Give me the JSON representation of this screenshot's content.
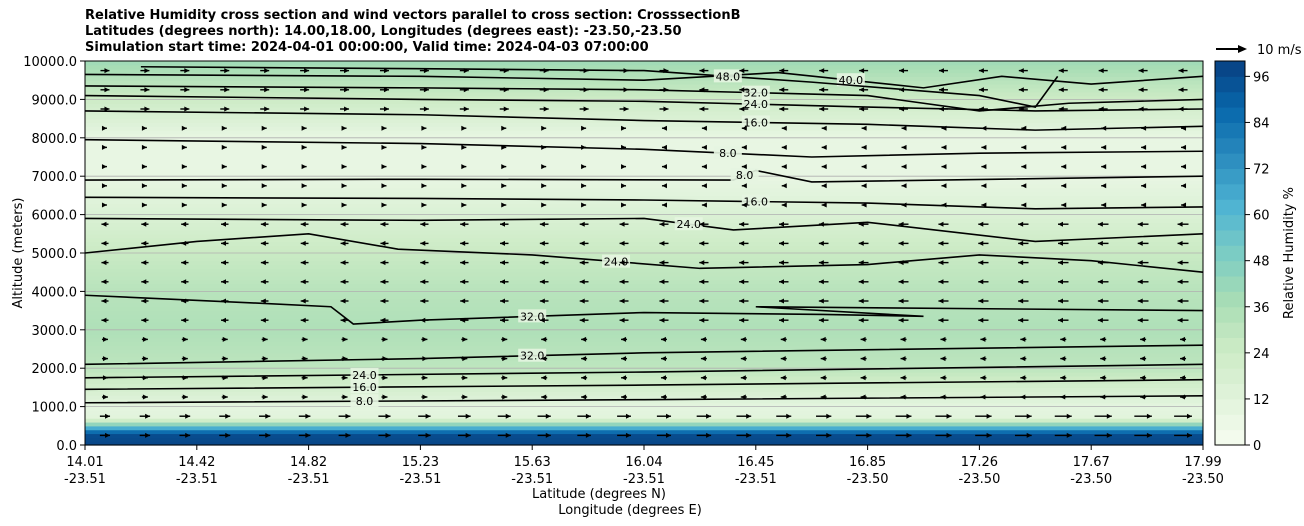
{
  "chart_data": {
    "type": "contour",
    "title_lines": [
      "Relative Humidity cross section and wind vectors parallel to cross section: CrosssectionB",
      "Latitudes (degrees north): 14.00,18.00, Longitudes (degrees east): -23.50,-23.50",
      "Simulation start time: 2024-04-01 00:00:00, Valid time: 2024-04-03 07:00:00"
    ],
    "ylabel": "Altitude (meters)",
    "xlabel_lines": [
      "Latitude (degrees N)",
      "Longitude (degrees E)"
    ],
    "ylim": [
      0,
      10000
    ],
    "yticks": [
      "0.0",
      "1000.0",
      "2000.0",
      "3000.0",
      "4000.0",
      "5000.0",
      "6000.0",
      "7000.0",
      "8000.0",
      "9000.0",
      "10000.0"
    ],
    "xticks": [
      {
        "lat": "14.01",
        "lon": "-23.51"
      },
      {
        "lat": "14.42",
        "lon": "-23.51"
      },
      {
        "lat": "14.82",
        "lon": "-23.51"
      },
      {
        "lat": "15.23",
        "lon": "-23.51"
      },
      {
        "lat": "15.63",
        "lon": "-23.51"
      },
      {
        "lat": "16.04",
        "lon": "-23.51"
      },
      {
        "lat": "16.45",
        "lon": "-23.51"
      },
      {
        "lat": "16.85",
        "lon": "-23.50"
      },
      {
        "lat": "17.26",
        "lon": "-23.50"
      },
      {
        "lat": "17.67",
        "lon": "-23.50"
      },
      {
        "lat": "17.99",
        "lon": "-23.50"
      }
    ],
    "grid": "horizontal",
    "colorbar": {
      "label": "Relative Humidity %",
      "ticks": [
        "0",
        "12",
        "24",
        "36",
        "48",
        "60",
        "72",
        "84",
        "96"
      ],
      "range": [
        0,
        100
      ],
      "step": 4,
      "colormap": [
        "#f7fcf0",
        "#e0f3db",
        "#ccebc5",
        "#a8ddb5",
        "#7bccc4",
        "#4eb3d3",
        "#2b8cbe",
        "#0868ac",
        "#084081"
      ]
    },
    "quiver_key": "10 m/s",
    "contour_levels": [
      "8.0",
      "16.0",
      "24.0",
      "32.0",
      "40.0",
      "48.0",
      "72.0",
      "96.0"
    ],
    "rh_profile": [
      {
        "alt": 0,
        "rh": 98
      },
      {
        "alt": 300,
        "rh": 96
      },
      {
        "alt": 700,
        "rh": 12
      },
      {
        "alt": 1000,
        "rh": 10
      },
      {
        "alt": 1500,
        "rh": 20
      },
      {
        "alt": 2000,
        "rh": 30
      },
      {
        "alt": 3000,
        "rh": 35
      },
      {
        "alt": 4000,
        "rh": 32
      },
      {
        "alt": 5000,
        "rh": 26
      },
      {
        "alt": 6000,
        "rh": 16
      },
      {
        "alt": 7000,
        "rh": 8
      },
      {
        "alt": 8000,
        "rh": 8
      },
      {
        "alt": 9000,
        "rh": 24
      },
      {
        "alt": 10000,
        "rh": 40
      }
    ],
    "contours": [
      {
        "label": "8.0",
        "points": [
          [
            0,
            1100
          ],
          [
            0.5,
            1180
          ],
          [
            1,
            1280
          ]
        ]
      },
      {
        "label": "16.0",
        "points": [
          [
            0,
            1450
          ],
          [
            0.5,
            1560
          ],
          [
            1,
            1700
          ]
        ]
      },
      {
        "label": "24.0",
        "points": [
          [
            0,
            1750
          ],
          [
            0.5,
            1900
          ],
          [
            1,
            2100
          ]
        ]
      },
      {
        "label": "32.0",
        "points": [
          [
            0,
            2100
          ],
          [
            0.3,
            2250
          ],
          [
            0.5,
            2400
          ],
          [
            1,
            2600
          ]
        ]
      },
      {
        "label": "32.0",
        "points": [
          [
            0,
            3900
          ],
          [
            0.15,
            3700
          ],
          [
            0.22,
            3600
          ],
          [
            0.24,
            3150
          ],
          [
            0.3,
            3250
          ],
          [
            0.5,
            3450
          ],
          [
            0.66,
            3400
          ],
          [
            0.75,
            3350
          ],
          [
            0.6,
            3600
          ],
          [
            1,
            3500
          ]
        ]
      },
      {
        "label": "24.0",
        "points": [
          [
            0,
            5000
          ],
          [
            0.1,
            5300
          ],
          [
            0.2,
            5500
          ],
          [
            0.28,
            5100
          ],
          [
            0.4,
            4950
          ],
          [
            0.55,
            4600
          ],
          [
            0.7,
            4700
          ],
          [
            0.8,
            4950
          ],
          [
            0.9,
            4800
          ],
          [
            1,
            4500
          ]
        ]
      },
      {
        "label": "24.0",
        "points": [
          [
            0,
            5900
          ],
          [
            0.3,
            5850
          ],
          [
            0.5,
            5900
          ],
          [
            0.58,
            5600
          ],
          [
            0.7,
            5800
          ],
          [
            0.85,
            5300
          ],
          [
            1,
            5500
          ]
        ]
      },
      {
        "label": "16.0",
        "points": [
          [
            0,
            6450
          ],
          [
            0.3,
            6420
          ],
          [
            0.5,
            6380
          ],
          [
            0.7,
            6300
          ],
          [
            0.85,
            6150
          ],
          [
            1,
            6200
          ]
        ]
      },
      {
        "label": "8.0",
        "points": [
          [
            0,
            6900
          ],
          [
            0.3,
            6920
          ],
          [
            0.58,
            6900
          ],
          [
            0.6,
            7150
          ],
          [
            0.65,
            6850
          ],
          [
            1,
            7000
          ]
        ]
      },
      {
        "label": "8.0",
        "points": [
          [
            0,
            7950
          ],
          [
            0.3,
            7850
          ],
          [
            0.5,
            7700
          ],
          [
            0.65,
            7500
          ],
          [
            0.8,
            7600
          ],
          [
            1,
            7650
          ]
        ]
      },
      {
        "label": "16.0",
        "points": [
          [
            0,
            8700
          ],
          [
            0.3,
            8600
          ],
          [
            0.5,
            8450
          ],
          [
            0.7,
            8350
          ],
          [
            0.85,
            8200
          ],
          [
            1,
            8300
          ]
        ]
      },
      {
        "label": "24.0",
        "points": [
          [
            0,
            9100
          ],
          [
            0.3,
            9000
          ],
          [
            0.5,
            8950
          ],
          [
            0.7,
            8800
          ],
          [
            0.85,
            8700
          ],
          [
            1,
            8750
          ]
        ]
      },
      {
        "label": "32.0",
        "points": [
          [
            0,
            9350
          ],
          [
            0.3,
            9300
          ],
          [
            0.5,
            9250
          ],
          [
            0.7,
            9100
          ],
          [
            0.8,
            8700
          ],
          [
            0.88,
            8900
          ],
          [
            1,
            9000
          ]
        ]
      },
      {
        "label": "40.0",
        "points": [
          [
            0,
            9650
          ],
          [
            0.3,
            9600
          ],
          [
            0.5,
            9500
          ],
          [
            0.62,
            9700
          ],
          [
            0.75,
            9300
          ],
          [
            0.82,
            9600
          ],
          [
            0.9,
            9400
          ],
          [
            1,
            9600
          ]
        ]
      },
      {
        "label": "48.0",
        "points": [
          [
            0.05,
            9850
          ],
          [
            0.3,
            9800
          ],
          [
            0.5,
            9750
          ],
          [
            0.65,
            9450
          ],
          [
            0.8,
            9100
          ],
          [
            0.85,
            8800
          ],
          [
            0.87,
            9600
          ]
        ]
      }
    ]
  }
}
